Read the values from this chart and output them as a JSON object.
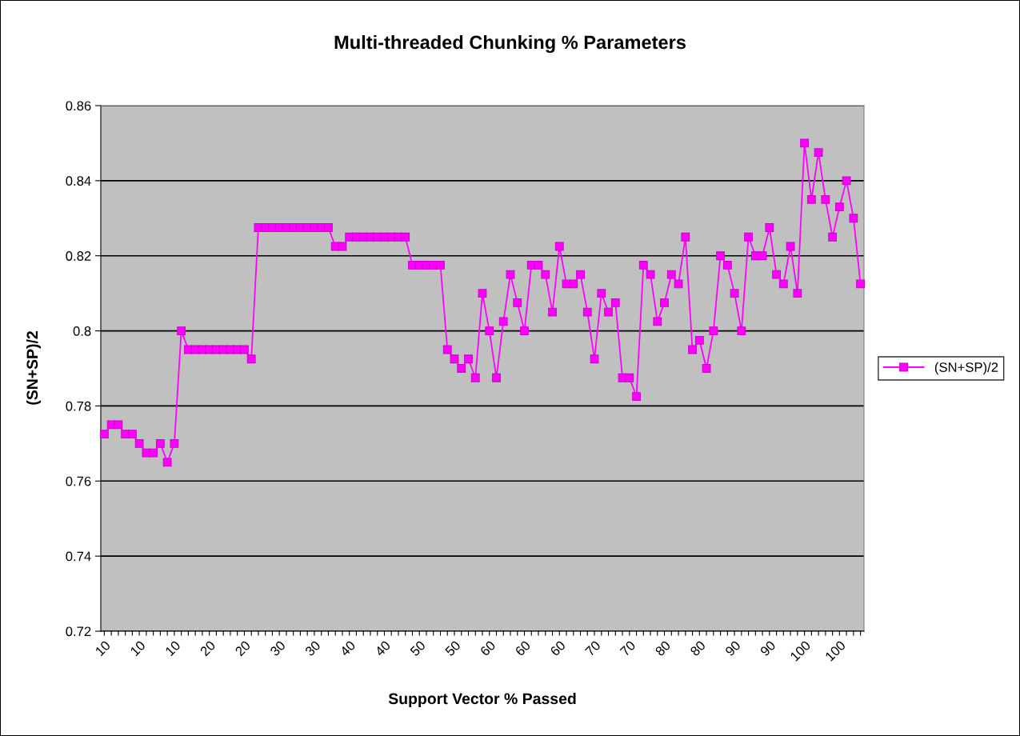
{
  "chart_data": {
    "type": "line",
    "title": "Multi-threaded Chunking % Parameters",
    "xlabel": "Support Vector % Passed",
    "ylabel": "(SN+SP)/2",
    "categories": [
      "10",
      null,
      null,
      null,
      null,
      "10",
      null,
      null,
      null,
      null,
      "10",
      null,
      null,
      null,
      null,
      "20",
      null,
      null,
      null,
      null,
      "20",
      null,
      null,
      null,
      null,
      "30",
      null,
      null,
      null,
      null,
      "30",
      null,
      null,
      null,
      null,
      "40",
      null,
      null,
      null,
      null,
      "40",
      null,
      null,
      null,
      null,
      "50",
      null,
      null,
      null,
      null,
      "50",
      null,
      null,
      null,
      null,
      "60",
      null,
      null,
      null,
      null,
      "60",
      null,
      null,
      null,
      null,
      "60",
      null,
      null,
      null,
      null,
      "70",
      null,
      null,
      null,
      null,
      "70",
      null,
      null,
      null,
      null,
      "80",
      null,
      null,
      null,
      null,
      "80",
      null,
      null,
      null,
      null,
      "90",
      null,
      null,
      null,
      null,
      "90",
      null,
      null,
      null,
      null,
      "100",
      null,
      null,
      null,
      null,
      "100",
      null,
      null,
      null
    ],
    "series": [
      {
        "name": "(SN+SP)/2",
        "color": "#ff00ff",
        "values": [
          0.7725,
          0.775,
          0.775,
          0.7725,
          0.7725,
          0.77,
          0.7675,
          0.7675,
          0.77,
          0.765,
          0.77,
          0.8,
          0.795,
          0.795,
          0.795,
          0.795,
          0.795,
          0.795,
          0.795,
          0.795,
          0.795,
          0.7925,
          0.8275,
          0.8275,
          0.8275,
          0.8275,
          0.8275,
          0.8275,
          0.8275,
          0.8275,
          0.8275,
          0.8275,
          0.8275,
          0.8225,
          0.8225,
          0.825,
          0.825,
          0.825,
          0.825,
          0.825,
          0.825,
          0.825,
          0.825,
          0.825,
          0.8175,
          0.8175,
          0.8175,
          0.8175,
          0.8175,
          0.795,
          0.7925,
          0.79,
          0.7925,
          0.7875,
          0.81,
          0.8,
          0.7875,
          0.8025,
          0.815,
          0.8075,
          0.8,
          0.8175,
          0.8175,
          0.815,
          0.805,
          0.8225,
          0.8125,
          0.8125,
          0.815,
          0.805,
          0.7925,
          0.81,
          0.805,
          0.8075,
          0.7875,
          0.7875,
          0.7825,
          0.8175,
          0.815,
          0.8025,
          0.8075,
          0.815,
          0.8125,
          0.825,
          0.795,
          0.7975,
          0.79,
          0.8,
          0.82,
          0.8175,
          0.81,
          0.8,
          0.825,
          0.82,
          0.82,
          0.8275,
          0.815,
          0.8125,
          0.8225,
          0.81,
          0.85,
          0.835,
          0.8475,
          0.835,
          0.825,
          0.833,
          0.84,
          0.83,
          0.8125
        ]
      }
    ],
    "ylim": [
      0.72,
      0.86
    ],
    "yticks": [
      0.72,
      0.74,
      0.76,
      0.78,
      0.8,
      0.82,
      0.84,
      0.86
    ],
    "grid": "y",
    "legend": "right",
    "marker": "square",
    "line_style": "solid"
  }
}
